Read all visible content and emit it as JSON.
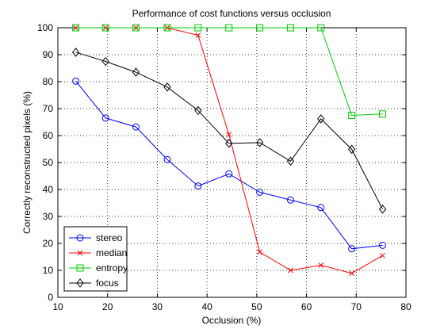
{
  "chart_data": {
    "type": "line",
    "title": "Performance of cost functions versus occlusion",
    "xlabel": "Occlusion (%)",
    "ylabel": "Correctly reconstructed pixels (%)",
    "xlim": [
      10,
      80
    ],
    "ylim": [
      0,
      100
    ],
    "xticks": [
      10,
      20,
      30,
      40,
      50,
      60,
      70,
      80
    ],
    "yticks": [
      0,
      10,
      20,
      30,
      40,
      50,
      60,
      70,
      80,
      90,
      100
    ],
    "grid": true,
    "legend_position": "bottom-left",
    "x": [
      13.6,
      19.6,
      25.7,
      32.0,
      38.2,
      44.4,
      50.6,
      56.8,
      62.9,
      69.1,
      75.3
    ],
    "series": [
      {
        "name": "stereo",
        "color": "#0000ff",
        "marker": "circle",
        "values": [
          80.2,
          66.5,
          63.2,
          51.1,
          41.3,
          45.8,
          39.0,
          36.1,
          33.3,
          18.0,
          19.3
        ]
      },
      {
        "name": "median",
        "color": "#ff0000",
        "marker": "x",
        "values": [
          100,
          100,
          100,
          100,
          97.2,
          60.4,
          16.8,
          10.0,
          11.9,
          8.9,
          15.5
        ]
      },
      {
        "name": "entropy",
        "color": "#00cc00",
        "marker": "square",
        "values": [
          100,
          100,
          100,
          100,
          100,
          100,
          100,
          100,
          100,
          67.5,
          68.0
        ]
      },
      {
        "name": "focus",
        "color": "#000000",
        "marker": "diamond",
        "values": [
          90.9,
          87.5,
          83.5,
          78.0,
          69.3,
          57.1,
          57.4,
          50.5,
          66.2,
          54.9,
          32.7
        ]
      }
    ]
  }
}
